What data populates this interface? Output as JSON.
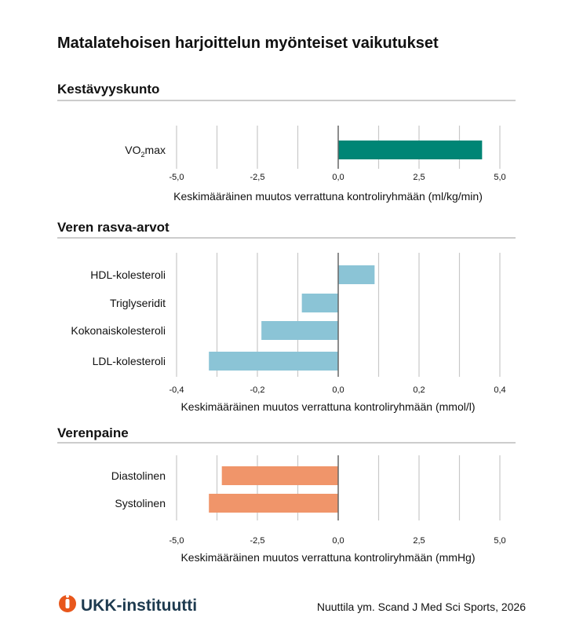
{
  "title": "Matalatehoisen harjoittelun myönteiset vaikutukset",
  "footer": {
    "logo_text": "UKK-instituutti",
    "source": "Nuuttila ym. Scand J Med Sci Sports, 2026"
  },
  "colors": {
    "green": "#008575",
    "blue": "#8bc4d6",
    "orange": "#f0956a",
    "logo_orange": "#e8571c",
    "logo_navy": "#1d3a4f"
  },
  "chart_data": [
    {
      "type": "bar",
      "orientation": "horizontal",
      "section_title": "Kestävyyskunto",
      "categories": [
        "VO2max"
      ],
      "values": [
        4.45
      ],
      "xlabel": "Keskimääräinen muutos verrattuna kontroliryhmään (ml/kg/min)",
      "xlim": [
        -5,
        5
      ],
      "ticks": [
        "-5,0",
        "-2,5",
        "0,0",
        "2,5",
        "5,0"
      ],
      "tick_values": [
        -5,
        -2.5,
        0,
        2.5,
        5
      ],
      "grid_step": 1.25,
      "color": "#008575"
    },
    {
      "type": "bar",
      "orientation": "horizontal",
      "section_title": "Veren rasva-arvot",
      "categories": [
        "HDL-kolesteroli",
        "Triglyseridit",
        "Kokonaiskolesteroli",
        "LDL-kolesteroli"
      ],
      "values": [
        0.09,
        -0.09,
        -0.19,
        -0.32
      ],
      "xlabel": "Keskimääräinen muutos verrattuna kontroliryhmään (mmol/l)",
      "xlim": [
        -0.4,
        0.4
      ],
      "ticks": [
        "-0,4",
        "-0,2",
        "0,0",
        "0,2",
        "0,4"
      ],
      "tick_values": [
        -0.4,
        -0.2,
        0,
        0.2,
        0.4
      ],
      "grid_step": 0.1,
      "color": "#8bc4d6"
    },
    {
      "type": "bar",
      "orientation": "horizontal",
      "section_title": "Verenpaine",
      "categories": [
        "Diastolinen",
        "Systolinen"
      ],
      "values": [
        -3.6,
        -4.0
      ],
      "xlabel": "Keskimääräinen muutos verrattuna kontroliryhmään (mmHg)",
      "xlim": [
        -5,
        5
      ],
      "ticks": [
        "-5,0",
        "-2,5",
        "0,0",
        "2,5",
        "5,0"
      ],
      "tick_values": [
        -5,
        -2.5,
        0,
        2.5,
        5
      ],
      "grid_step": 1.25,
      "color": "#f0956a"
    }
  ]
}
